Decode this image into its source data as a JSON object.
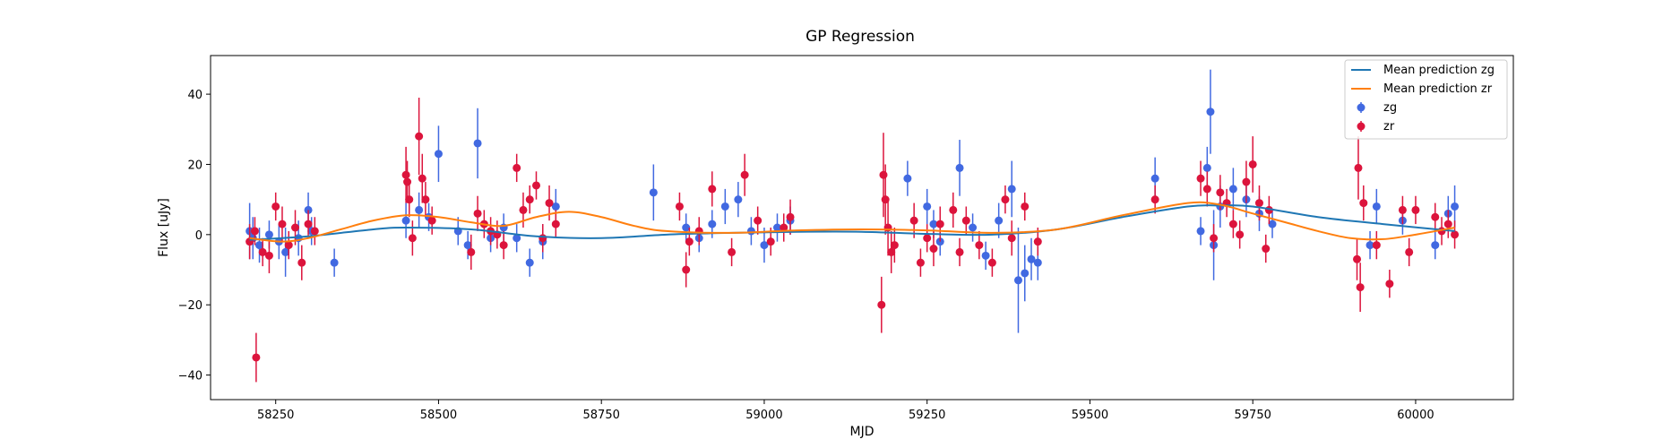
{
  "chart_data": {
    "type": "scatter",
    "title": "GP Regression",
    "xlabel": "MJD",
    "ylabel": "Flux [uJy]",
    "xlim": [
      58150,
      60150
    ],
    "ylim": [
      -47,
      51
    ],
    "xticks": [
      58250,
      58500,
      58750,
      59000,
      59250,
      59500,
      59750,
      60000
    ],
    "yticks": [
      -40,
      -20,
      0,
      20,
      40
    ],
    "grid": false,
    "legend_position": "top-right",
    "colors": {
      "zg_mean": "#1f77b4",
      "zr_mean": "#ff7f0e",
      "zg_points": "#4169e1",
      "zr_points": "#dc143c"
    },
    "lines": [
      {
        "name": "Mean prediction zg",
        "color": "#1f77b4",
        "x": [
          58210,
          58300,
          58400,
          58450,
          58550,
          58650,
          58750,
          58850,
          58950,
          59050,
          59150,
          59250,
          59350,
          59450,
          59550,
          59650,
          59700,
          59750,
          59850,
          59950,
          60060
        ],
        "y": [
          -1.5,
          -0.5,
          1.5,
          2,
          1.5,
          -0.5,
          -1,
          0,
          0.5,
          0.8,
          0.8,
          0.2,
          0,
          1.5,
          5,
          8,
          8.3,
          8,
          5,
          3,
          1
        ]
      },
      {
        "name": "Mean prediction zr",
        "color": "#ff7f0e",
        "x": [
          58210,
          58260,
          58300,
          58350,
          58400,
          58450,
          58500,
          58550,
          58600,
          58650,
          58700,
          58750,
          58800,
          58850,
          58950,
          59050,
          59150,
          59250,
          59350,
          59450,
          59550,
          59650,
          59700,
          59750,
          59800,
          59850,
          59900,
          59950,
          60000,
          60060
        ],
        "y": [
          -1,
          -2,
          -1,
          1.5,
          4,
          5.5,
          5,
          3.5,
          2.5,
          5,
          6.5,
          5,
          2.5,
          1,
          0.5,
          1.2,
          1.5,
          1.2,
          0.5,
          1.5,
          5.5,
          9,
          8.5,
          6,
          3.5,
          1,
          -1,
          -1.3,
          0,
          2
        ]
      }
    ],
    "series": [
      {
        "name": "zg",
        "color": "#4169e1",
        "marker": "circle-errorbar",
        "x": [
          58210,
          58215,
          58225,
          58240,
          58255,
          58265,
          58285,
          58300,
          58305,
          58340,
          58450,
          58470,
          58485,
          58500,
          58530,
          58545,
          58560,
          58580,
          58600,
          58620,
          58640,
          58660,
          58680,
          58830,
          58880,
          58900,
          58920,
          58940,
          58960,
          58980,
          59000,
          59020,
          59040,
          59220,
          59250,
          59260,
          59270,
          59300,
          59320,
          59340,
          59360,
          59380,
          59390,
          59400,
          59410,
          59420,
          59600,
          59670,
          59680,
          59685,
          59690,
          59700,
          59720,
          59740,
          59760,
          59780,
          59930,
          59940,
          59980,
          60030,
          60050,
          60060
        ],
        "y": [
          1,
          -1,
          -3,
          0,
          -2,
          -5,
          -1,
          7,
          1,
          -8,
          4,
          7,
          5,
          23,
          1,
          -3,
          26,
          -1,
          2,
          -1,
          -8,
          -2,
          8,
          12,
          2,
          -1,
          3,
          8,
          10,
          1,
          -3,
          2,
          4,
          16,
          8,
          3,
          -2,
          19,
          2,
          -6,
          4,
          13,
          -13,
          -11,
          -7,
          -8,
          16,
          1,
          19,
          35,
          -3,
          8,
          13,
          10,
          6,
          3,
          -3,
          8,
          4,
          -3,
          6,
          8
        ],
        "err": [
          8,
          6,
          5,
          4,
          5,
          7,
          5,
          5,
          4,
          4,
          5,
          5,
          4,
          8,
          4,
          4,
          10,
          4,
          4,
          4,
          4,
          5,
          5,
          8,
          4,
          4,
          4,
          5,
          5,
          4,
          5,
          4,
          4,
          5,
          5,
          4,
          4,
          8,
          4,
          4,
          5,
          8,
          15,
          8,
          6,
          5,
          6,
          4,
          6,
          12,
          10,
          6,
          6,
          5,
          5,
          4,
          4,
          5,
          4,
          4,
          5,
          6
        ]
      },
      {
        "name": "zr",
        "color": "#dc143c",
        "marker": "circle-errorbar",
        "x": [
          58210,
          58218,
          58220,
          58230,
          58240,
          58250,
          58260,
          58270,
          58280,
          58290,
          58300,
          58310,
          58450,
          58452,
          58455,
          58460,
          58470,
          58475,
          58480,
          58490,
          58550,
          58560,
          58570,
          58580,
          58590,
          58600,
          58620,
          58630,
          58640,
          58650,
          58660,
          58670,
          58680,
          58870,
          58880,
          58885,
          58900,
          58920,
          58950,
          58970,
          58990,
          59010,
          59030,
          59040,
          59180,
          59183,
          59186,
          59190,
          59195,
          59200,
          59230,
          59240,
          59250,
          59260,
          59270,
          59290,
          59300,
          59310,
          59330,
          59350,
          59370,
          59380,
          59400,
          59420,
          59600,
          59670,
          59680,
          59690,
          59700,
          59710,
          59720,
          59730,
          59740,
          59750,
          59760,
          59770,
          59775,
          59910,
          59912,
          59915,
          59920,
          59940,
          59960,
          59980,
          59990,
          60000,
          60030,
          60040,
          60050,
          60060
        ],
        "y": [
          -2,
          1,
          -35,
          -5,
          -6,
          8,
          3,
          -3,
          2,
          -8,
          3,
          1,
          17,
          15,
          10,
          -1,
          28,
          16,
          10,
          4,
          -5,
          6,
          3,
          1,
          0,
          -3,
          19,
          7,
          10,
          14,
          -1,
          9,
          3,
          8,
          -10,
          -2,
          1,
          13,
          -5,
          17,
          4,
          -2,
          2,
          5,
          -20,
          17,
          10,
          2,
          -5,
          -3,
          4,
          -8,
          -1,
          -4,
          3,
          7,
          -5,
          4,
          -3,
          -8,
          10,
          -1,
          8,
          -2,
          10,
          16,
          13,
          -1,
          12,
          9,
          3,
          0,
          15,
          20,
          9,
          -4,
          7,
          -7,
          19,
          -15,
          9,
          -3,
          -14,
          7,
          -5,
          7,
          5,
          1,
          3,
          0
        ],
        "err": [
          5,
          4,
          7,
          4,
          5,
          4,
          5,
          4,
          5,
          5,
          4,
          4,
          8,
          6,
          5,
          5,
          11,
          7,
          5,
          4,
          5,
          5,
          4,
          4,
          4,
          4,
          4,
          5,
          4,
          4,
          4,
          5,
          4,
          4,
          5,
          4,
          4,
          5,
          4,
          6,
          4,
          4,
          4,
          5,
          8,
          12,
          10,
          8,
          6,
          5,
          5,
          4,
          4,
          5,
          5,
          5,
          4,
          4,
          4,
          4,
          4,
          5,
          4,
          4,
          4,
          5,
          5,
          4,
          5,
          4,
          4,
          4,
          6,
          8,
          5,
          4,
          4,
          6,
          9,
          7,
          5,
          4,
          4,
          4,
          4,
          4,
          4,
          4,
          4,
          4
        ]
      }
    ],
    "legend": [
      "Mean prediction zg",
      "Mean prediction zr",
      "zg",
      "zr"
    ]
  }
}
